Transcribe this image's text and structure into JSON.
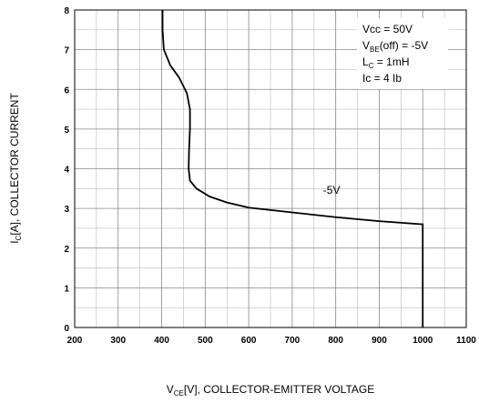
{
  "chart_data": {
    "type": "line",
    "xlabel": {
      "main": "V",
      "sub": "CE",
      "rest": "[V], COLLECTOR-EMITTER VOLTAGE"
    },
    "ylabel": {
      "main": "I",
      "sub": "C",
      "rest": "[A], COLLECTOR CURRENT"
    },
    "x": [
      402,
      402,
      405,
      420,
      440,
      458,
      465,
      465,
      463,
      462,
      465,
      480,
      510,
      550,
      600,
      700,
      800,
      900,
      1000,
      1000
    ],
    "series": [
      {
        "color": "#000000",
        "values": [
          8,
          7.5,
          7.0,
          6.6,
          6.3,
          5.9,
          5.5,
          5.0,
          4.5,
          4.0,
          3.7,
          3.5,
          3.3,
          3.15,
          3.02,
          2.9,
          2.78,
          2.68,
          2.6,
          0
        ]
      }
    ],
    "xlim": [
      200,
      1100
    ],
    "xticks": [
      200,
      300,
      400,
      500,
      600,
      700,
      800,
      900,
      1000,
      1100
    ],
    "ylim": [
      0,
      8
    ],
    "yticks": [
      0,
      1,
      2,
      3,
      4,
      5,
      6,
      7,
      8
    ],
    "grid": true,
    "minor_grid": true,
    "annotations": [
      {
        "text": "-5V",
        "x": 771,
        "y": 3.37
      }
    ],
    "conditions": [
      {
        "main": "Vcc = 50V",
        "sub": "",
        "rest": ""
      },
      {
        "main": "V",
        "sub": "BE",
        "rest": "(off) = -5V"
      },
      {
        "main": "L",
        "sub": "C",
        "rest": " = 1mH"
      },
      {
        "main": "Ic = 4 Ib",
        "sub": "",
        "rest": ""
      }
    ]
  }
}
